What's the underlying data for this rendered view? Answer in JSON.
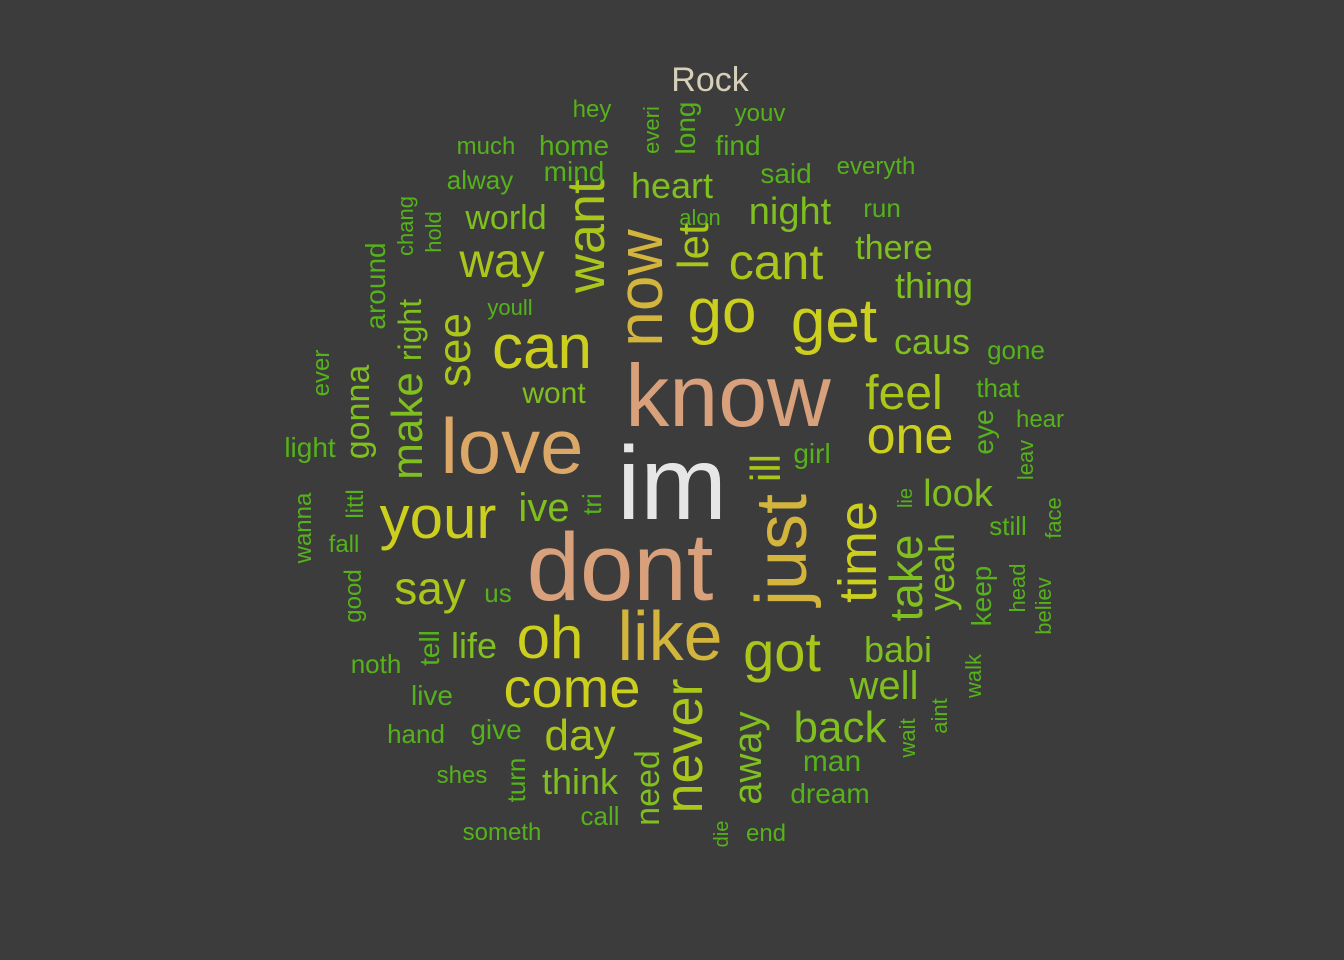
{
  "title": "Rock",
  "colors": {
    "background": "#3c3c3c",
    "title": "#d6d0b8",
    "tier1": "#e6e6e6",
    "tier2": "#d9a07c",
    "tier3": "#dca868",
    "tier4": "#d3b43c",
    "tier5": "#cdcf1e",
    "tier6": "#a9c71a",
    "tier7": "#7fbf1f",
    "tier8": "#55b21a"
  },
  "words": [
    {
      "text": "im",
      "freq": 100,
      "tier": 1
    },
    {
      "text": "dont",
      "freq": 92,
      "tier": 2
    },
    {
      "text": "know",
      "freq": 88,
      "tier": 2
    },
    {
      "text": "love",
      "freq": 84,
      "tier": 3
    },
    {
      "text": "just",
      "freq": 78,
      "tier": 4
    },
    {
      "text": "like",
      "freq": 72,
      "tier": 4
    },
    {
      "text": "now",
      "freq": 66,
      "tier": 4
    },
    {
      "text": "can",
      "freq": 62,
      "tier": 5
    },
    {
      "text": "your",
      "freq": 62,
      "tier": 5
    },
    {
      "text": "go",
      "freq": 62,
      "tier": 5
    },
    {
      "text": "get",
      "freq": 60,
      "tier": 5
    },
    {
      "text": "oh",
      "freq": 60,
      "tier": 5
    },
    {
      "text": "come",
      "freq": 60,
      "tier": 5
    },
    {
      "text": "want",
      "freq": 58,
      "tier": 6
    },
    {
      "text": "time",
      "freq": 58,
      "tier": 5
    },
    {
      "text": "got",
      "freq": 56,
      "tier": 6
    },
    {
      "text": "never",
      "freq": 56,
      "tier": 6
    },
    {
      "text": "one",
      "freq": 54,
      "tier": 5
    },
    {
      "text": "way",
      "freq": 50,
      "tier": 6
    },
    {
      "text": "cant",
      "freq": 50,
      "tier": 6
    },
    {
      "text": "see",
      "freq": 50,
      "tier": 6
    },
    {
      "text": "feel",
      "freq": 50,
      "tier": 6
    },
    {
      "text": "make",
      "freq": 48,
      "tier": 7
    },
    {
      "text": "say",
      "freq": 46,
      "tier": 6
    },
    {
      "text": "let",
      "freq": 46,
      "tier": 6
    },
    {
      "text": "take",
      "freq": 46,
      "tier": 7
    },
    {
      "text": "back",
      "freq": 44,
      "tier": 7
    },
    {
      "text": "day",
      "freq": 42,
      "tier": 6
    },
    {
      "text": "away",
      "freq": 42,
      "tier": 7
    },
    {
      "text": "well",
      "freq": 40,
      "tier": 7
    },
    {
      "text": "yeah",
      "freq": 40,
      "tier": 7
    },
    {
      "text": "ill",
      "freq": 40,
      "tier": 6
    },
    {
      "text": "heart",
      "freq": 38,
      "tier": 7
    },
    {
      "text": "night",
      "freq": 38,
      "tier": 7
    },
    {
      "text": "gonna",
      "freq": 38,
      "tier": 7
    },
    {
      "text": "babi",
      "freq": 38,
      "tier": 7
    },
    {
      "text": "ive",
      "freq": 38,
      "tier": 7
    },
    {
      "text": "look",
      "freq": 38,
      "tier": 7
    },
    {
      "text": "think",
      "freq": 38,
      "tier": 7
    },
    {
      "text": "need",
      "freq": 38,
      "tier": 7
    },
    {
      "text": "caus",
      "freq": 36,
      "tier": 7
    },
    {
      "text": "thing",
      "freq": 36,
      "tier": 7
    },
    {
      "text": "there",
      "freq": 36,
      "tier": 7
    },
    {
      "text": "world",
      "freq": 34,
      "tier": 7
    },
    {
      "text": "life",
      "freq": 34,
      "tier": 7
    },
    {
      "text": "right",
      "freq": 32,
      "tier": 7
    },
    {
      "text": "wont",
      "freq": 30,
      "tier": 7
    },
    {
      "text": "man",
      "freq": 30,
      "tier": 8
    },
    {
      "text": "dream",
      "freq": 28,
      "tier": 8
    },
    {
      "text": "home",
      "freq": 28,
      "tier": 8
    },
    {
      "text": "find",
      "freq": 28,
      "tier": 8
    },
    {
      "text": "said",
      "freq": 28,
      "tier": 8
    },
    {
      "text": "mind",
      "freq": 28,
      "tier": 8
    },
    {
      "text": "eye",
      "freq": 28,
      "tier": 8
    },
    {
      "text": "girl",
      "freq": 28,
      "tier": 8
    },
    {
      "text": "still",
      "freq": 28,
      "tier": 8
    },
    {
      "text": "live",
      "freq": 28,
      "tier": 8
    },
    {
      "text": "give",
      "freq": 28,
      "tier": 8
    },
    {
      "text": "tell",
      "freq": 28,
      "tier": 8
    },
    {
      "text": "long",
      "freq": 28,
      "tier": 8
    },
    {
      "text": "around",
      "freq": 28,
      "tier": 8
    },
    {
      "text": "keep",
      "freq": 28,
      "tier": 8
    },
    {
      "text": "light",
      "freq": 26,
      "tier": 8
    },
    {
      "text": "alway",
      "freq": 26,
      "tier": 8
    },
    {
      "text": "run",
      "freq": 26,
      "tier": 8
    },
    {
      "text": "gone",
      "freq": 26,
      "tier": 8
    },
    {
      "text": "that",
      "freq": 26,
      "tier": 8
    },
    {
      "text": "hear",
      "freq": 26,
      "tier": 8
    },
    {
      "text": "everyth",
      "freq": 26,
      "tier": 8
    },
    {
      "text": "hey",
      "freq": 26,
      "tier": 8
    },
    {
      "text": "youv",
      "freq": 26,
      "tier": 8
    },
    {
      "text": "much",
      "freq": 26,
      "tier": 8
    },
    {
      "text": "noth",
      "freq": 26,
      "tier": 8
    },
    {
      "text": "hand",
      "freq": 26,
      "tier": 8
    },
    {
      "text": "shes",
      "freq": 26,
      "tier": 8
    },
    {
      "text": "someth",
      "freq": 26,
      "tier": 8
    },
    {
      "text": "call",
      "freq": 26,
      "tier": 8
    },
    {
      "text": "end",
      "freq": 26,
      "tier": 8
    },
    {
      "text": "fall",
      "freq": 26,
      "tier": 8
    },
    {
      "text": "us",
      "freq": 26,
      "tier": 8
    },
    {
      "text": "tri",
      "freq": 26,
      "tier": 8
    },
    {
      "text": "good",
      "freq": 26,
      "tier": 8
    },
    {
      "text": "turn",
      "freq": 26,
      "tier": 8
    },
    {
      "text": "everi",
      "freq": 24,
      "tier": 8
    },
    {
      "text": "alon",
      "freq": 24,
      "tier": 8
    },
    {
      "text": "youll",
      "freq": 24,
      "tier": 8
    },
    {
      "text": "littl",
      "freq": 24,
      "tier": 8
    },
    {
      "text": "wanna",
      "freq": 24,
      "tier": 8
    },
    {
      "text": "ever",
      "freq": 24,
      "tier": 8
    },
    {
      "text": "chang",
      "freq": 24,
      "tier": 8
    },
    {
      "text": "hold",
      "freq": 24,
      "tier": 8
    },
    {
      "text": "leav",
      "freq": 24,
      "tier": 8
    },
    {
      "text": "face",
      "freq": 24,
      "tier": 8
    },
    {
      "text": "head",
      "freq": 24,
      "tier": 8
    },
    {
      "text": "believ",
      "freq": 24,
      "tier": 8
    },
    {
      "text": "walk",
      "freq": 24,
      "tier": 8
    },
    {
      "text": "aint",
      "freq": 24,
      "tier": 8
    },
    {
      "text": "wait",
      "freq": 24,
      "tier": 8
    },
    {
      "text": "lie",
      "freq": 22,
      "tier": 8
    },
    {
      "text": "die",
      "freq": 22,
      "tier": 8
    }
  ]
}
